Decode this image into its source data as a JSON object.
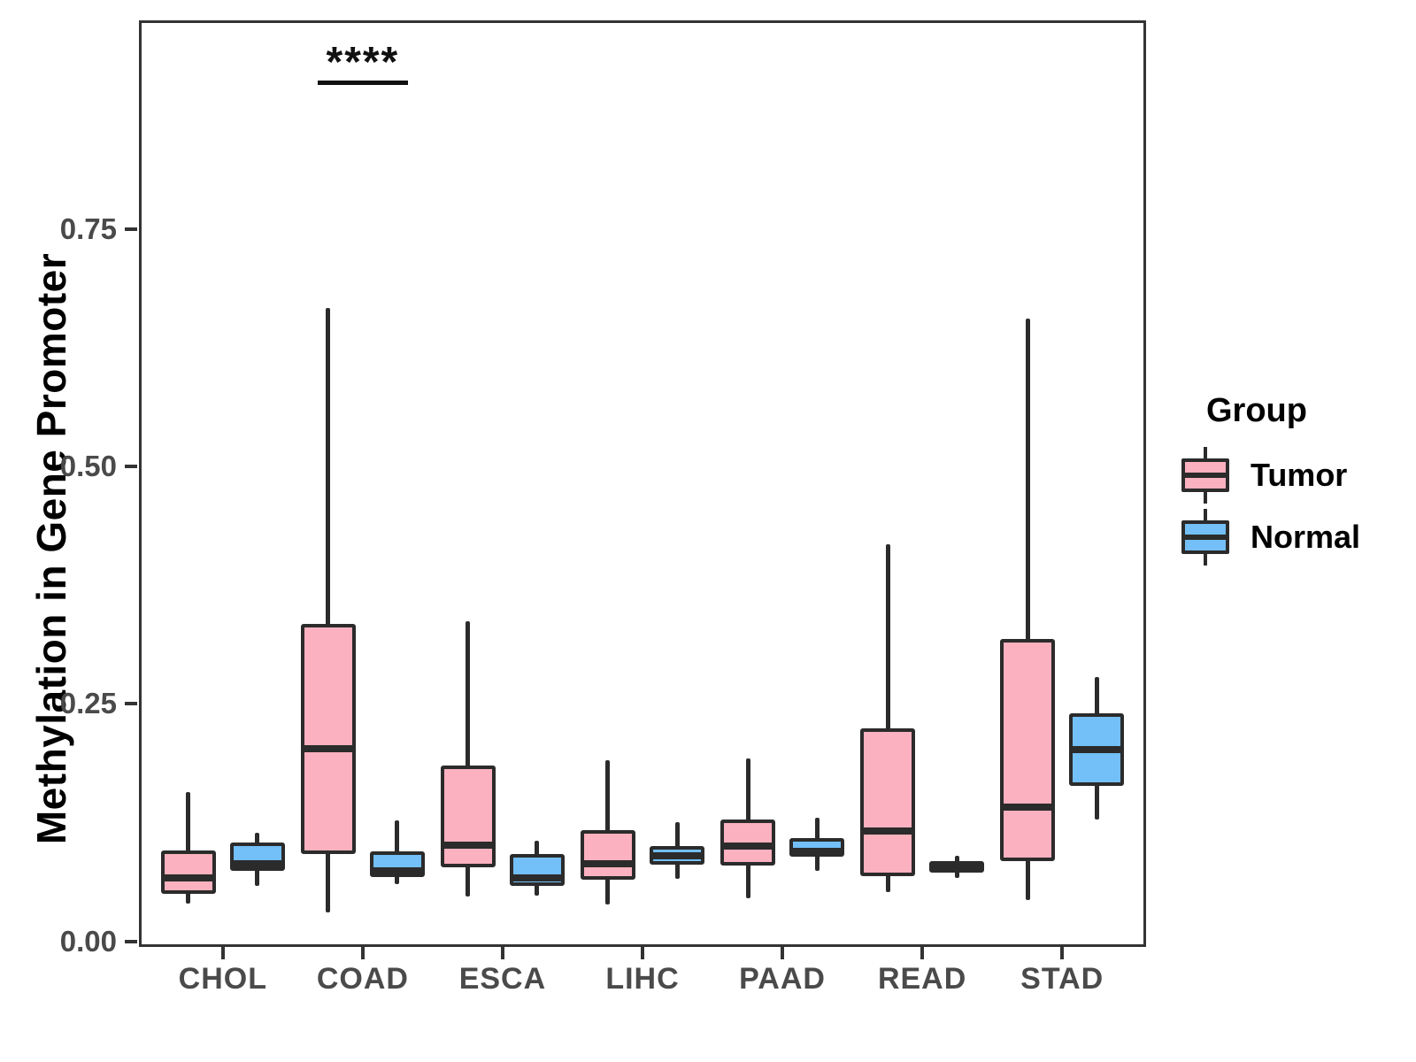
{
  "figure": {
    "type": "grouped_boxplot",
    "background": "#ffffff"
  },
  "y_axis": {
    "label": "Methylation in Gene Promoter",
    "tick_labels": [
      "0.00",
      "0.25",
      "0.50",
      "0.75"
    ],
    "tick_values": [
      0,
      0.25,
      0.5,
      0.75
    ],
    "range": [
      -0.006,
      0.97
    ]
  },
  "x_axis": {
    "categories": [
      "CHOL",
      "COAD",
      "ESCA",
      "LIHC",
      "PAAD",
      "READ",
      "STAD"
    ]
  },
  "legend": {
    "title": "Group",
    "entries": [
      {
        "label": "Tumor",
        "color": "#FBB1BF"
      },
      {
        "label": "Normal",
        "color": "#73BFF7"
      }
    ]
  },
  "style": {
    "box_border": "#2b2b2b",
    "axis_line": "#333333",
    "axis_text": "#4a4a4a"
  },
  "chart_data": {
    "type": "boxplot",
    "title": "",
    "xlabel": "",
    "ylabel": "Methylation in Gene Promoter",
    "categories": [
      "CHOL",
      "COAD",
      "ESCA",
      "LIHC",
      "PAAD",
      "READ",
      "STAD"
    ],
    "ylim": [
      0,
      0.97
    ],
    "yticks": [
      0,
      0.25,
      0.5,
      0.75
    ],
    "grid": false,
    "legend_position": "right",
    "series": [
      {
        "name": "Tumor",
        "color": "#FBB1BF",
        "boxes": [
          {
            "category": "CHOL",
            "min": 0.04,
            "q1": 0.05,
            "median": 0.067,
            "q3": 0.096,
            "max": 0.157
          },
          {
            "category": "COAD",
            "min": 0.03,
            "q1": 0.092,
            "median": 0.203,
            "q3": 0.334,
            "max": 0.667
          },
          {
            "category": "ESCA",
            "min": 0.047,
            "q1": 0.078,
            "median": 0.101,
            "q3": 0.185,
            "max": 0.337
          },
          {
            "category": "LIHC",
            "min": 0.039,
            "q1": 0.065,
            "median": 0.082,
            "q3": 0.117,
            "max": 0.191
          },
          {
            "category": "PAAD",
            "min": 0.045,
            "q1": 0.08,
            "median": 0.1,
            "q3": 0.128,
            "max": 0.193
          },
          {
            "category": "READ",
            "min": 0.052,
            "q1": 0.069,
            "median": 0.116,
            "q3": 0.224,
            "max": 0.418
          },
          {
            "category": "STAD",
            "min": 0.043,
            "q1": 0.084,
            "median": 0.141,
            "q3": 0.318,
            "max": 0.656
          }
        ]
      },
      {
        "name": "Normal",
        "color": "#73BFF7",
        "boxes": [
          {
            "category": "CHOL",
            "min": 0.058,
            "q1": 0.074,
            "median": 0.082,
            "q3": 0.104,
            "max": 0.114
          },
          {
            "category": "COAD",
            "min": 0.06,
            "q1": 0.068,
            "median": 0.074,
            "q3": 0.095,
            "max": 0.127
          },
          {
            "category": "ESCA",
            "min": 0.048,
            "q1": 0.058,
            "median": 0.067,
            "q3": 0.092,
            "max": 0.106
          },
          {
            "category": "LIHC",
            "min": 0.066,
            "q1": 0.081,
            "median": 0.09,
            "q3": 0.1,
            "max": 0.125
          },
          {
            "category": "PAAD",
            "min": 0.074,
            "q1": 0.089,
            "median": 0.095,
            "q3": 0.109,
            "max": 0.13
          },
          {
            "category": "READ",
            "min": 0.067,
            "q1": 0.072,
            "median": 0.078,
            "q3": 0.084,
            "max": 0.09
          },
          {
            "category": "STAD",
            "min": 0.128,
            "q1": 0.164,
            "median": 0.202,
            "q3": 0.24,
            "max": 0.278
          }
        ]
      }
    ],
    "annotations": [
      {
        "text": "****",
        "category": "COAD",
        "y": 0.905,
        "between": [
          "Tumor",
          "Normal"
        ]
      }
    ]
  }
}
